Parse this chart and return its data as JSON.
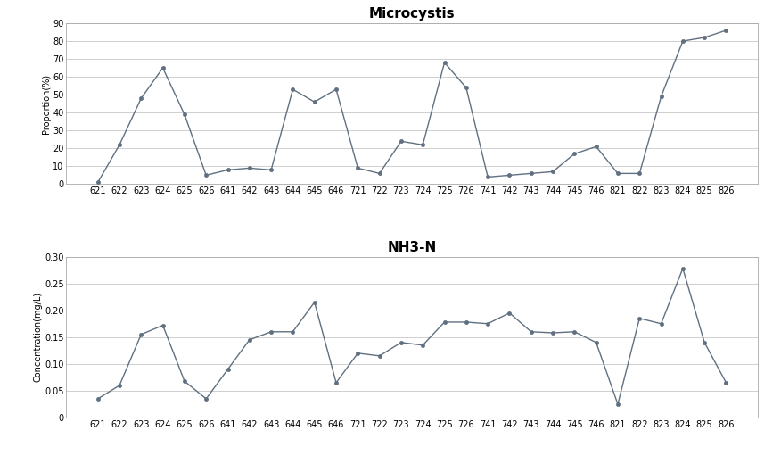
{
  "x_labels": [
    "621",
    "622",
    "623",
    "624",
    "625",
    "626",
    "641",
    "642",
    "643",
    "644",
    "645",
    "646",
    "721",
    "722",
    "723",
    "724",
    "725",
    "726",
    "741",
    "742",
    "743",
    "744",
    "745",
    "746",
    "821",
    "822",
    "823",
    "824",
    "825",
    "826"
  ],
  "microcystis_values": [
    1,
    22,
    48,
    65,
    39,
    5,
    8,
    9,
    8,
    53,
    46,
    53,
    9,
    6,
    24,
    22,
    68,
    54,
    4,
    5,
    6,
    7,
    17,
    21,
    6,
    6,
    49,
    80,
    82,
    86
  ],
  "nh3n_values": [
    0.035,
    0.06,
    0.155,
    0.172,
    0.068,
    0.035,
    0.09,
    0.145,
    0.16,
    0.16,
    0.215,
    0.065,
    0.12,
    0.115,
    0.14,
    0.135,
    0.178,
    0.178,
    0.175,
    0.195,
    0.16,
    0.158,
    0.16,
    0.14,
    0.025,
    0.185,
    0.175,
    0.278,
    0.14,
    0.065
  ],
  "microcystis_title": "Microcystis",
  "nh3n_title": "NH3-N",
  "microcystis_ylabel": "Proportion(%)",
  "nh3n_ylabel": "Concentration(mg/L)",
  "microcystis_ylim": [
    0,
    90
  ],
  "microcystis_yticks": [
    0,
    10,
    20,
    30,
    40,
    50,
    60,
    70,
    80,
    90
  ],
  "nh3n_ylim": [
    0,
    0.3
  ],
  "nh3n_yticks": [
    0,
    0.05,
    0.1,
    0.15,
    0.2,
    0.25,
    0.3
  ],
  "nh3n_yticklabels": [
    "0",
    "0.05",
    "0.10",
    "0.15",
    "0.20",
    "0.25",
    "0.30"
  ],
  "line_color": "#607080",
  "marker": "o",
  "marker_size": 3,
  "bg_color": "#ffffff",
  "grid_color": "#c8c8c8",
  "spine_color": "#aaaaaa",
  "title_fontsize": 11,
  "label_fontsize": 7,
  "tick_fontsize": 7
}
